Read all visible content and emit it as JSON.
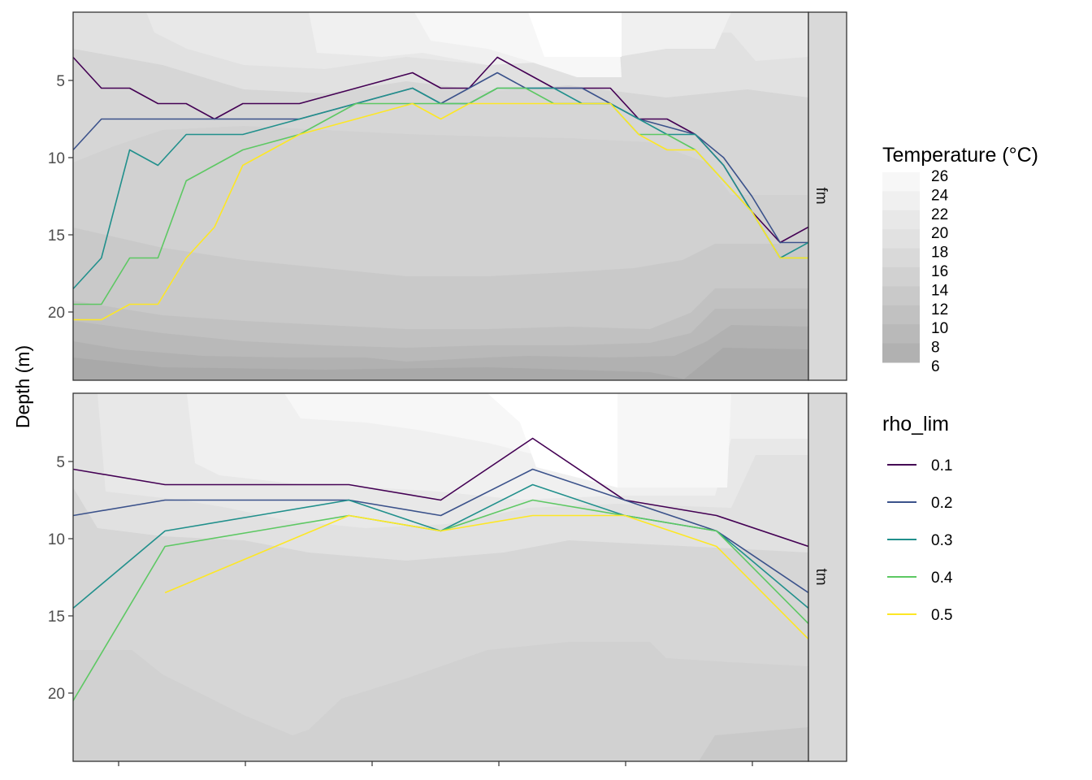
{
  "chart_data": [
    {
      "type": "line",
      "panel": "fm",
      "ylabel": "Depth (m)",
      "ylim": [
        0,
        24
      ],
      "y_reversed": true,
      "y_ticks": [
        5,
        10,
        15,
        20
      ],
      "x_ticks_count": 6,
      "background": "filled temperature contours (°C)",
      "series": [
        {
          "name": "0.1",
          "color": "#440154",
          "x": [
            1,
            2,
            3,
            4,
            5,
            6,
            7,
            8,
            9,
            10,
            11,
            12,
            13,
            14,
            15,
            16,
            17,
            18,
            19,
            20,
            21,
            22,
            23,
            24,
            25,
            26,
            27
          ],
          "y": [
            3.5,
            5.5,
            5.5,
            6.5,
            6.5,
            7.5,
            6.5,
            6.5,
            6.5,
            6.0,
            5.5,
            5.0,
            4.5,
            5.5,
            5.5,
            3.5,
            4.5,
            5.5,
            5.5,
            5.5,
            7.5,
            7.5,
            8.5,
            10.5,
            13.5,
            15.5,
            14.5
          ]
        },
        {
          "name": "0.2",
          "color": "#3B528B",
          "x": [
            1,
            2,
            3,
            4,
            5,
            6,
            7,
            8,
            9,
            10,
            11,
            12,
            13,
            14,
            15,
            16,
            17,
            18,
            19,
            20,
            21,
            22,
            23,
            24,
            25,
            26,
            27
          ],
          "y": [
            9.5,
            7.5,
            7.5,
            7.5,
            7.5,
            7.5,
            7.5,
            7.5,
            7.5,
            7.0,
            6.5,
            6.0,
            5.5,
            6.5,
            5.5,
            4.5,
            5.5,
            5.5,
            5.5,
            6.5,
            7.5,
            8.0,
            8.5,
            10.0,
            12.5,
            15.5,
            15.5
          ]
        },
        {
          "name": "0.3",
          "color": "#21908C",
          "x": [
            1,
            2,
            3,
            4,
            5,
            6,
            7,
            8,
            9,
            10,
            11,
            12,
            13,
            14,
            15,
            16,
            17,
            18,
            19,
            20,
            21,
            22,
            23,
            24,
            25,
            26,
            27
          ],
          "y": [
            18.5,
            16.5,
            9.5,
            10.5,
            8.5,
            8.5,
            8.5,
            8.0,
            7.5,
            7.0,
            6.5,
            6.0,
            5.5,
            6.5,
            6.5,
            5.5,
            5.5,
            5.5,
            6.5,
            6.5,
            7.5,
            8.5,
            8.5,
            10.5,
            13.5,
            16.5,
            15.5
          ]
        },
        {
          "name": "0.4",
          "color": "#5DC863",
          "x": [
            1,
            2,
            3,
            4,
            5,
            6,
            7,
            8,
            9,
            10,
            11,
            12,
            13,
            14,
            15,
            16,
            17,
            18,
            19,
            20,
            21,
            22,
            23,
            24,
            25,
            26,
            27
          ],
          "y": [
            19.5,
            19.5,
            16.5,
            16.5,
            11.5,
            10.5,
            9.5,
            9.0,
            8.5,
            7.5,
            6.5,
            6.5,
            6.5,
            6.5,
            6.5,
            5.5,
            5.5,
            6.5,
            6.5,
            6.5,
            8.5,
            8.5,
            9.5,
            11.5,
            13.5,
            16.5,
            16.5
          ]
        },
        {
          "name": "0.5",
          "color": "#FDE725",
          "x": [
            1,
            2,
            3,
            4,
            5,
            6,
            7,
            8,
            9,
            10,
            11,
            12,
            13,
            14,
            15,
            16,
            17,
            18,
            19,
            20,
            21,
            22,
            23,
            24,
            25,
            26,
            27
          ],
          "y": [
            20.5,
            20.5,
            19.5,
            19.5,
            16.5,
            14.5,
            10.5,
            9.5,
            8.5,
            8.0,
            7.5,
            7.0,
            6.5,
            7.5,
            6.5,
            6.5,
            6.5,
            6.5,
            6.5,
            6.5,
            8.5,
            9.5,
            9.5,
            11.5,
            13.5,
            16.5,
            16.5
          ]
        }
      ]
    },
    {
      "type": "line",
      "panel": "tm",
      "ylabel": "Depth (m)",
      "ylim": [
        0,
        24
      ],
      "y_reversed": true,
      "y_ticks": [
        5,
        10,
        15,
        20
      ],
      "x_ticks_count": 6,
      "background": "filled temperature contours (°C)",
      "series": [
        {
          "name": "0.1",
          "color": "#440154",
          "x": [
            1,
            2,
            3,
            4,
            5,
            6,
            7,
            8,
            9
          ],
          "y": [
            5.5,
            6.5,
            6.5,
            6.5,
            7.5,
            3.5,
            7.5,
            8.5,
            10.5
          ]
        },
        {
          "name": "0.2",
          "color": "#3B528B",
          "x": [
            1,
            2,
            3,
            4,
            5,
            6,
            7,
            8,
            9
          ],
          "y": [
            8.5,
            7.5,
            7.5,
            7.5,
            8.5,
            5.5,
            7.5,
            9.5,
            13.5
          ]
        },
        {
          "name": "0.3",
          "color": "#21908C",
          "x": [
            1,
            2,
            3,
            4,
            5,
            6,
            7,
            8,
            9
          ],
          "y": [
            14.5,
            9.5,
            8.5,
            7.5,
            9.5,
            6.5,
            8.5,
            9.5,
            14.5
          ]
        },
        {
          "name": "0.4",
          "color": "#5DC863",
          "x": [
            1,
            2,
            3,
            4,
            5,
            6,
            7,
            8,
            9
          ],
          "y": [
            20.5,
            10.5,
            9.5,
            8.5,
            9.5,
            7.5,
            8.5,
            9.5,
            15.5
          ]
        },
        {
          "name": "0.5",
          "color": "#FDE725",
          "x": [
            2,
            3,
            4,
            5,
            6,
            7,
            8,
            9
          ],
          "y": [
            13.5,
            11.0,
            8.5,
            9.5,
            8.5,
            8.5,
            10.5,
            16.5
          ]
        }
      ]
    }
  ],
  "legend_temperature": {
    "title": "Temperature (°C)",
    "labels": [
      "26",
      "24",
      "22",
      "20",
      "18",
      "16",
      "14",
      "12",
      "10",
      "8",
      "6"
    ],
    "colors": [
      "#f7f7f7",
      "#f0f0f0",
      "#e8e8e8",
      "#e1e1e1",
      "#d9d9d9",
      "#d1d1d1",
      "#c9c9c9",
      "#c1c1c1",
      "#b9b9b9",
      "#b1b1b1",
      "#a9a9a9"
    ]
  },
  "legend_rho": {
    "title": "rho_lim",
    "items": [
      {
        "label": "0.1",
        "color": "#440154"
      },
      {
        "label": "0.2",
        "color": "#3B528B"
      },
      {
        "label": "0.3",
        "color": "#21908C"
      },
      {
        "label": "0.4",
        "color": "#5DC863"
      },
      {
        "label": "0.5",
        "color": "#FDE725"
      }
    ]
  },
  "axis": {
    "ylabel": "Depth (m)"
  },
  "strips": [
    "fm",
    "tm"
  ],
  "y_tick_labels": [
    "5",
    "10",
    "15",
    "20"
  ]
}
